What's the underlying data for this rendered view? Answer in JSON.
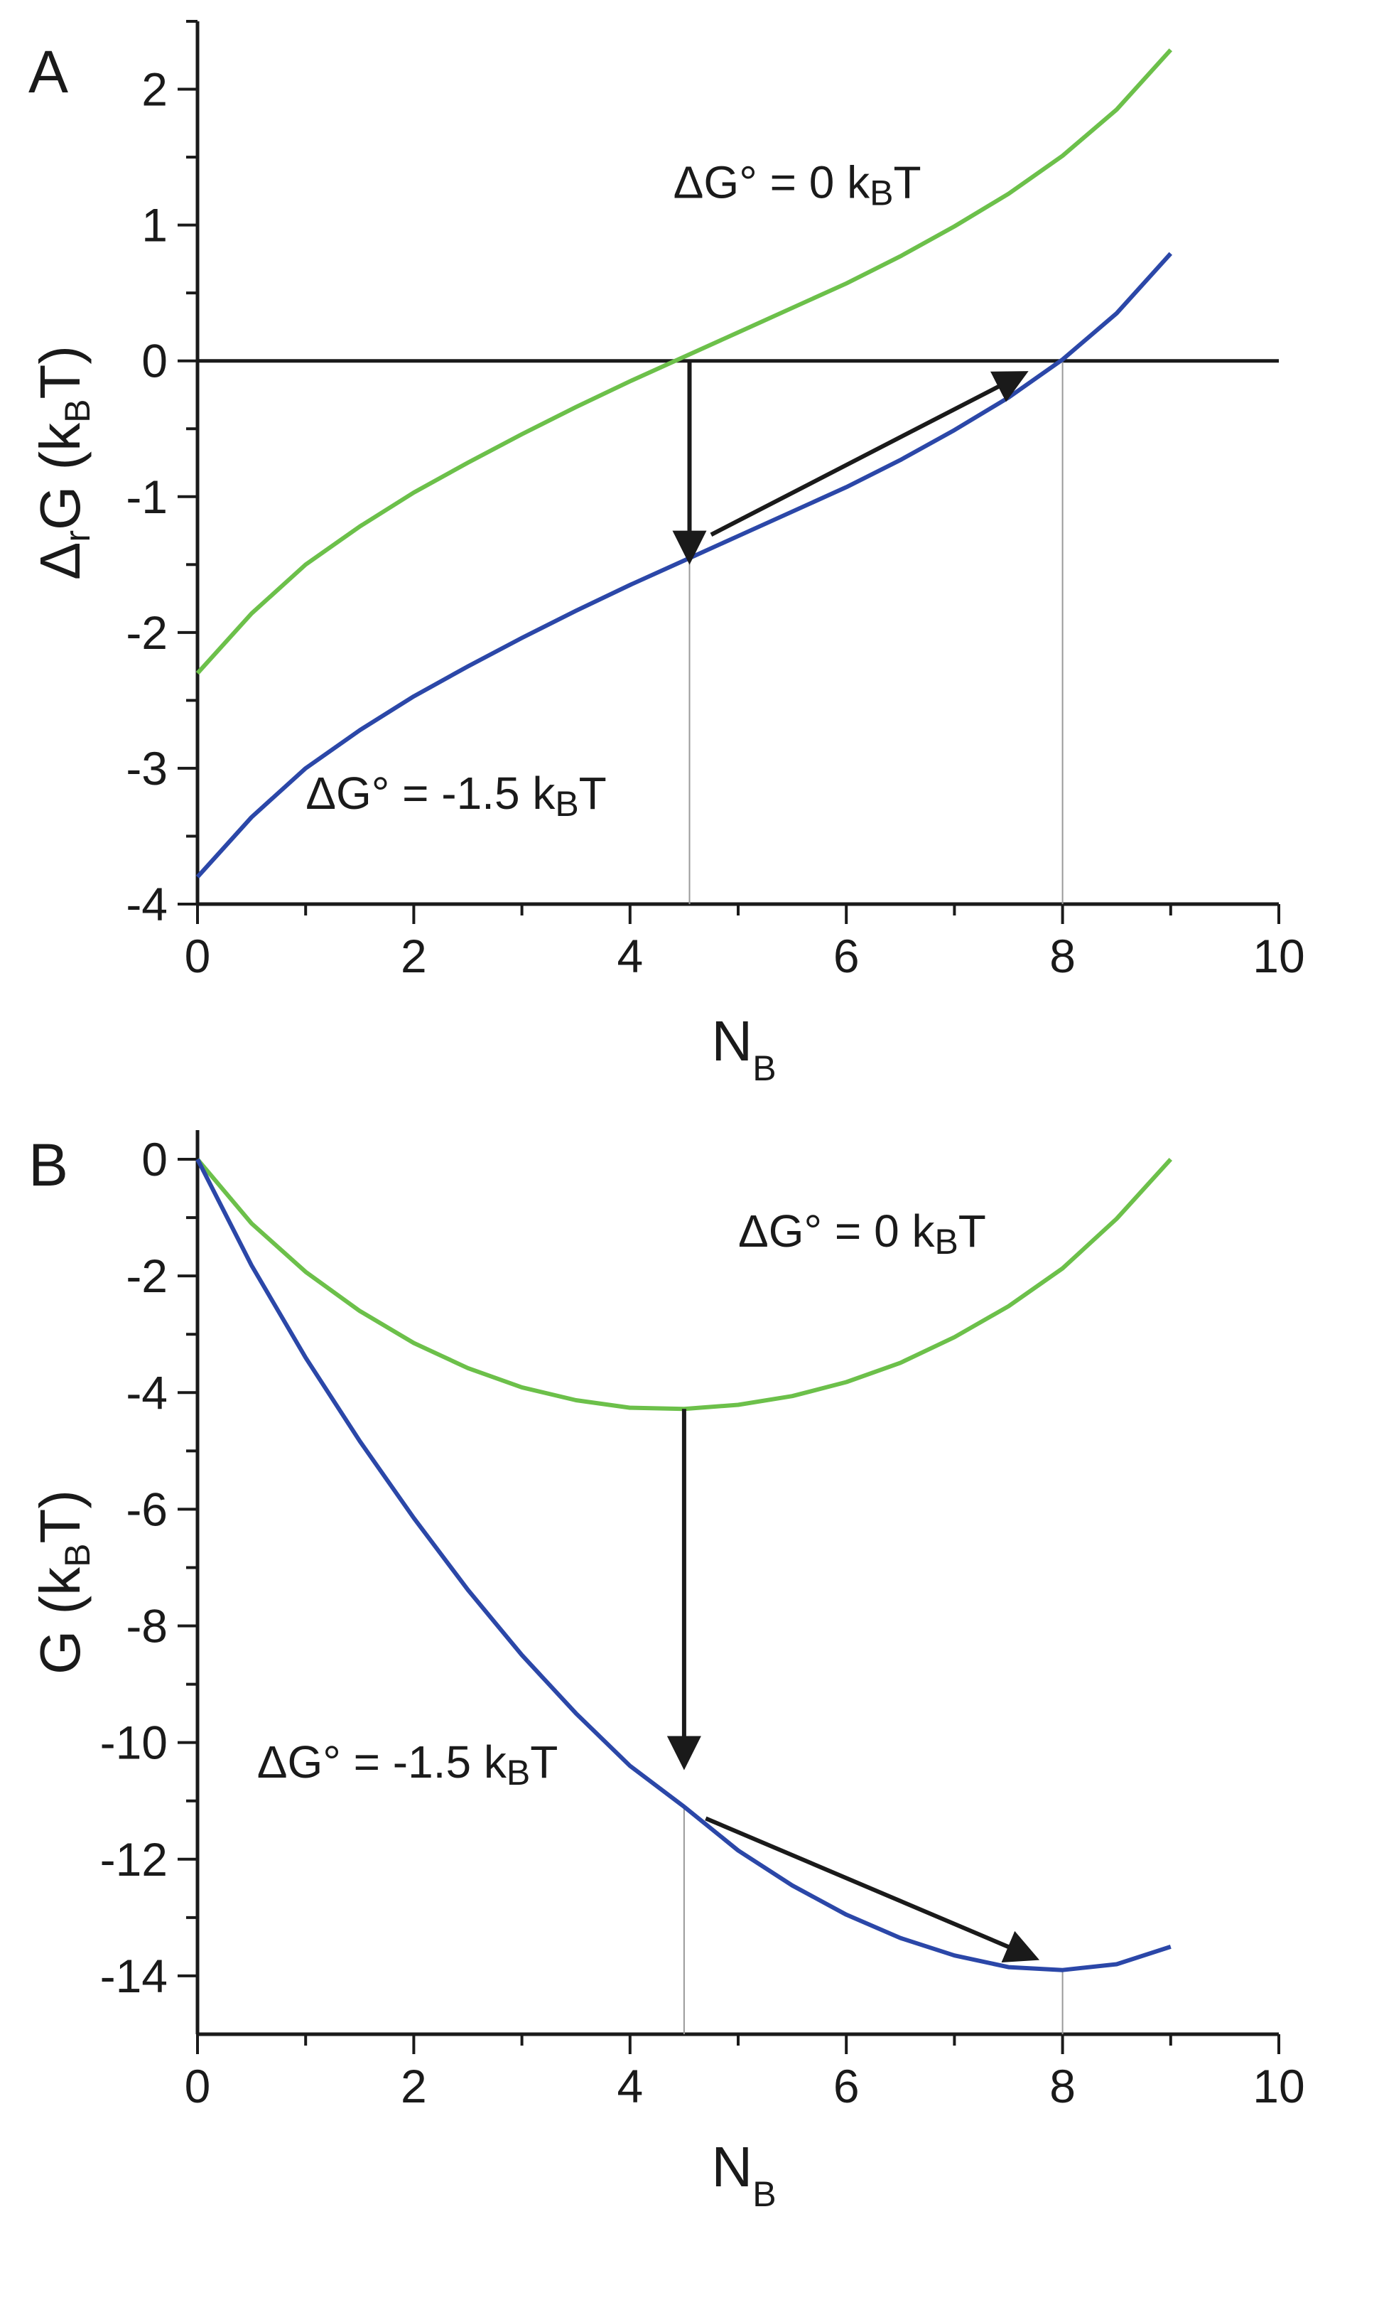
{
  "chart_data": [
    {
      "panel_label": "A",
      "type": "line",
      "xlabel_main": "N",
      "xlabel_sub": "B",
      "ylabel_parts": [
        "Δ",
        "r",
        "G (k",
        "B",
        "T)"
      ],
      "xlim": [
        0,
        10
      ],
      "ylim": [
        -4,
        2.5
      ],
      "xticks": [
        0,
        2,
        4,
        6,
        8,
        10
      ],
      "xtick_labels": [
        "0",
        "2",
        "4",
        "6",
        "8",
        "10"
      ],
      "yticks": [
        -4,
        -3,
        -2,
        -1,
        0,
        1,
        2
      ],
      "ytick_labels": [
        "-4",
        "-3",
        "-2",
        "-1",
        "0",
        "1",
        "2"
      ],
      "zero_line": true,
      "series": [
        {
          "color": "#6cc04a",
          "x": [
            0,
            0.5,
            1,
            1.5,
            2,
            2.5,
            3,
            3.5,
            4,
            4.5,
            5,
            5.5,
            6,
            6.5,
            7,
            7.5,
            8,
            8.5,
            9
          ],
          "y": [
            -2.3,
            -1.86,
            -1.5,
            -1.22,
            -0.97,
            -0.75,
            -0.54,
            -0.34,
            -0.15,
            0.03,
            0.21,
            0.39,
            0.57,
            0.77,
            0.99,
            1.23,
            1.51,
            1.85,
            2.29
          ]
        },
        {
          "color": "#2b47a8",
          "x": [
            0,
            0.5,
            1,
            1.5,
            2,
            2.5,
            3,
            3.5,
            4,
            4.5,
            5,
            5.5,
            6,
            6.5,
            7,
            7.5,
            8,
            8.5,
            9
          ],
          "y": [
            -3.8,
            -3.36,
            -3.0,
            -2.72,
            -2.47,
            -2.25,
            -2.04,
            -1.84,
            -1.65,
            -1.47,
            -1.29,
            -1.11,
            -0.93,
            -0.73,
            -0.51,
            -0.27,
            0.01,
            0.35,
            0.79
          ]
        }
      ],
      "annotations": [
        {
          "parts": [
            "ΔG° = 0 k",
            "B",
            "T"
          ],
          "x": 4.4,
          "y": 1.2
        },
        {
          "parts": [
            "ΔG° = -1.5 k",
            "B",
            "T"
          ],
          "x": 1.0,
          "y": -3.3
        }
      ],
      "guide_lines": [
        4.55,
        8.0
      ],
      "arrows": [
        {
          "from": [
            4.55,
            0.0
          ],
          "to": [
            4.55,
            -1.47
          ]
        },
        {
          "from": [
            4.75,
            -1.28
          ],
          "to": [
            7.65,
            -0.09
          ]
        }
      ]
    },
    {
      "panel_label": "B",
      "type": "line",
      "xlabel_main": "N",
      "xlabel_sub": "B",
      "ylabel_parts": [
        "G (k",
        "B",
        "T)"
      ],
      "xlim": [
        0,
        10
      ],
      "ylim": [
        -15,
        0.5
      ],
      "xticks": [
        0,
        2,
        4,
        6,
        8,
        10
      ],
      "xtick_labels": [
        "0",
        "2",
        "4",
        "6",
        "8",
        "10"
      ],
      "yticks": [
        0,
        -2,
        -4,
        -6,
        -8,
        -10,
        -12,
        -14
      ],
      "ytick_labels": [
        "0",
        "-2",
        "-4",
        "-6",
        "-8",
        "-10",
        "-12",
        "-14"
      ],
      "zero_line": false,
      "series": [
        {
          "color": "#6cc04a",
          "x": [
            0,
            0.5,
            1,
            1.5,
            2,
            2.5,
            3,
            3.5,
            4,
            4.5,
            5,
            5.5,
            6,
            6.5,
            7,
            7.5,
            8,
            8.5,
            9
          ],
          "y": [
            0,
            -1.1,
            -1.93,
            -2.6,
            -3.15,
            -3.58,
            -3.91,
            -4.13,
            -4.26,
            -4.28,
            -4.21,
            -4.06,
            -3.82,
            -3.49,
            -3.05,
            -2.52,
            -1.87,
            -1.02,
            0
          ]
        },
        {
          "color": "#2b47a8",
          "x": [
            0,
            0.5,
            1,
            1.5,
            2,
            2.5,
            3,
            3.5,
            4,
            4.5,
            5,
            5.5,
            6,
            6.5,
            7,
            7.5,
            8,
            8.5,
            9
          ],
          "y": [
            0,
            -1.82,
            -3.4,
            -4.83,
            -6.15,
            -7.38,
            -8.5,
            -9.5,
            -10.4,
            -11.1,
            -11.85,
            -12.45,
            -12.95,
            -13.35,
            -13.65,
            -13.85,
            -13.9,
            -13.8,
            -13.5
          ]
        }
      ],
      "annotations": [
        {
          "parts": [
            "ΔG° = 0 k",
            "B",
            "T"
          ],
          "x": 5.0,
          "y": -1.5
        },
        {
          "parts": [
            "ΔG° = -1.5 k",
            "B",
            "T"
          ],
          "x": 0.55,
          "y": -10.6
        }
      ],
      "guide_lines": [
        4.5,
        8.0
      ],
      "arrows": [
        {
          "from": [
            4.5,
            -4.28
          ],
          "to": [
            4.5,
            -10.4
          ]
        },
        {
          "from": [
            4.7,
            -11.3
          ],
          "to": [
            7.75,
            -13.7
          ]
        }
      ]
    }
  ]
}
